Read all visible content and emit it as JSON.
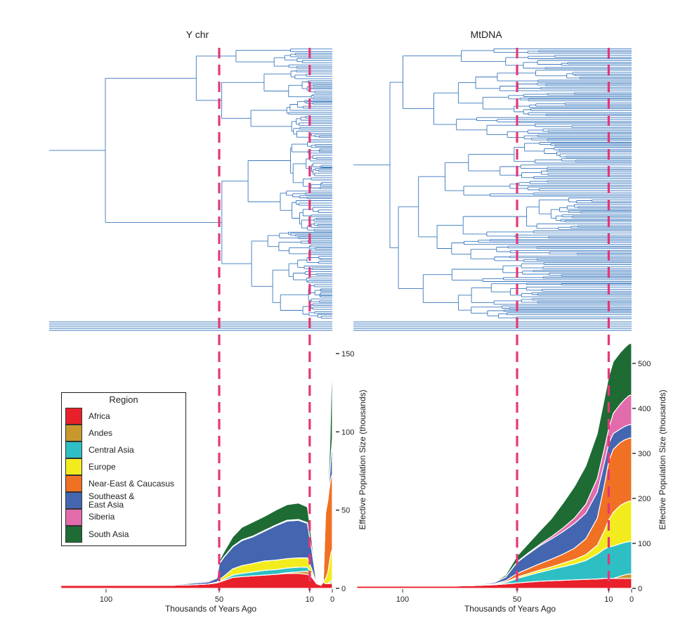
{
  "chart_data": [
    {
      "type": "tree",
      "title": "Y chr",
      "description_of_marks": "Time-calibrated Y-chromosome phylogeny with tips at present (0); dashed reference lines at 50 and 10 thousand years ago",
      "x_axis": "Thousands of Years Ago",
      "reference_lines": [
        50,
        10
      ]
    },
    {
      "type": "tree",
      "title": "MtDNA",
      "description_of_marks": "Time-calibrated mitochondrial DNA phylogeny with tips at present (0); dashed reference lines at 50 and 10 thousand years ago",
      "x_axis": "Thousands of Years Ago",
      "reference_lines": [
        50,
        10
      ]
    },
    {
      "type": "area",
      "stacked": true,
      "panel": "Y chr",
      "xlabel": "Thousands of Years Ago",
      "ylabel": "Effective Population Size (thousands)",
      "x_ticks": [
        100,
        50,
        10,
        0
      ],
      "y_ticks": [
        0,
        50,
        100,
        150
      ],
      "xlim": [
        120,
        0
      ],
      "ylim": [
        0,
        150
      ],
      "reference_lines": [
        50,
        10
      ],
      "x": [
        120,
        100,
        90,
        75,
        70,
        62,
        55,
        51,
        50,
        48,
        44,
        40,
        35,
        30,
        25,
        20,
        15,
        11,
        9,
        7,
        5,
        4,
        3,
        2,
        1.5,
        1,
        0.5,
        0
      ],
      "series": [
        {
          "name": "Africa",
          "values": [
            2,
            2,
            2,
            2,
            2,
            2.3,
            2.8,
            3.5,
            4,
            5,
            7,
            7.5,
            8,
            8.5,
            9,
            9.5,
            9.5,
            9,
            7,
            3,
            2,
            4,
            3,
            3,
            3,
            3,
            3,
            3
          ]
        },
        {
          "name": "Andes",
          "values": [
            0,
            0,
            0,
            0,
            0,
            0,
            0,
            0,
            0,
            0,
            0,
            0,
            0,
            0,
            0,
            0.5,
            1,
            2,
            1,
            0,
            0,
            0,
            0,
            0,
            0.5,
            1,
            1,
            1
          ]
        },
        {
          "name": "Central Asia",
          "values": [
            0,
            0,
            0,
            0,
            0,
            0,
            0,
            0.2,
            0.5,
            0.7,
            1.5,
            2,
            2.5,
            3,
            3,
            3,
            3,
            2.5,
            1,
            0,
            0,
            0,
            0,
            0,
            0,
            0.5,
            1,
            1
          ]
        },
        {
          "name": "Europe",
          "values": [
            0,
            0,
            0,
            0,
            0,
            0,
            0,
            0.3,
            1,
            2,
            4,
            5,
            5.5,
            6,
            6,
            6,
            6,
            6,
            3,
            0,
            0,
            0,
            3,
            7,
            11,
            15,
            18,
            20
          ]
        },
        {
          "name": "Near-East & Caucasus",
          "values": [
            0,
            0,
            0,
            0,
            0,
            0,
            0,
            0,
            0,
            0,
            0,
            0,
            0,
            0,
            0,
            0,
            0,
            0,
            0,
            0,
            0,
            0,
            42,
            46,
            48,
            48,
            48,
            48
          ]
        },
        {
          "name": "Southeast & East Asia",
          "values": [
            0,
            0,
            0,
            0,
            0.5,
            1,
            1.3,
            2.5,
            10,
            12,
            14,
            16,
            17,
            19,
            22,
            24,
            24,
            22,
            12,
            1,
            0,
            0,
            0,
            2,
            4,
            8,
            15,
            22
          ]
        },
        {
          "name": "Siberia",
          "values": [
            0,
            0,
            0,
            0,
            0,
            0.5,
            0.7,
            0.6,
            0.5,
            0.3,
            0.4,
            0.5,
            0.5,
            0.5,
            0.5,
            0.5,
            0.5,
            0.5,
            0.2,
            0,
            0,
            0,
            0,
            0,
            0.5,
            1,
            1,
            1
          ]
        },
        {
          "name": "South Asia",
          "values": [
            0,
            0,
            0,
            0,
            0,
            0,
            0,
            0.5,
            1.5,
            3,
            6,
            8,
            9,
            9,
            9.5,
            10,
            10.5,
            10,
            6,
            0,
            0,
            0,
            1,
            4,
            10,
            20,
            40,
            54
          ]
        }
      ]
    },
    {
      "type": "area",
      "stacked": true,
      "panel": "MtDNA",
      "xlabel": "Thousands of Years Ago",
      "ylabel": "Effective Population Size (thousands)",
      "x_ticks": [
        100,
        50,
        10,
        0
      ],
      "y_ticks": [
        0,
        100,
        200,
        300,
        400,
        500
      ],
      "xlim": [
        120,
        0
      ],
      "ylim": [
        0,
        530
      ],
      "reference_lines": [
        50,
        10
      ],
      "x": [
        120,
        100,
        80,
        70,
        60,
        55,
        50,
        45,
        40,
        35,
        30,
        25,
        20,
        15,
        12,
        10,
        8,
        5,
        3,
        1,
        0
      ],
      "series": [
        {
          "name": "Africa",
          "values": [
            5,
            5,
            5,
            6,
            8,
            10,
            12,
            14,
            16,
            17,
            18,
            19,
            20,
            21,
            22,
            22,
            22,
            22,
            22,
            22,
            22
          ]
        },
        {
          "name": "Andes",
          "values": [
            0,
            0,
            0,
            0,
            0,
            0,
            0,
            0,
            0,
            0,
            0,
            0,
            0,
            0,
            0,
            0,
            0,
            5,
            8,
            10,
            10
          ]
        },
        {
          "name": "Central Asia",
          "values": [
            0,
            0,
            0,
            0,
            1,
            3,
            10,
            15,
            20,
            25,
            30,
            35,
            42,
            55,
            65,
            70,
            72,
            72,
            72,
            72,
            72
          ]
        },
        {
          "name": "Europe",
          "values": [
            0,
            0,
            0,
            0,
            0,
            1,
            3,
            4,
            5,
            6,
            8,
            10,
            13,
            20,
            40,
            60,
            75,
            85,
            88,
            90,
            90
          ]
        },
        {
          "name": "Near-East & Caucasus",
          "values": [
            0,
            0,
            0,
            0,
            1,
            3,
            8,
            11,
            14,
            17,
            20,
            25,
            35,
            60,
            100,
            130,
            140,
            140,
            140,
            140,
            140
          ]
        },
        {
          "name": "Southeast & East Asia",
          "values": [
            0,
            0,
            0,
            1,
            3,
            8,
            25,
            33,
            40,
            45,
            50,
            55,
            57,
            58,
            50,
            40,
            35,
            30,
            30,
            30,
            30
          ]
        },
        {
          "name": "Siberia",
          "values": [
            0,
            0,
            0,
            0,
            0,
            0.5,
            1,
            2,
            3,
            5,
            8,
            12,
            20,
            30,
            32,
            33,
            45,
            55,
            60,
            65,
            65
          ]
        },
        {
          "name": "South Asia",
          "values": [
            0,
            0,
            0,
            0,
            1,
            4,
            13,
            21,
            30,
            40,
            55,
            70,
            85,
            100,
            110,
            115,
            115,
            115,
            115,
            115,
            115
          ]
        }
      ]
    }
  ],
  "labels": {
    "y_title": "Y chr",
    "mt_title": "MtDNA",
    "xlabel": "Thousands of Years Ago",
    "ylabel": "Effective Population Size (thousands)"
  },
  "legend": {
    "title": "Region",
    "items": [
      {
        "label": "Africa",
        "color": "#E8202A"
      },
      {
        "label": "Andes",
        "color": "#C8982E"
      },
      {
        "label": "Central Asia",
        "color": "#2EBFC4"
      },
      {
        "label": "Europe",
        "color": "#F2EC1E"
      },
      {
        "label": "Near-East & Caucasus",
        "color": "#F07024"
      },
      {
        "label": "Southeast &\nEast Asia",
        "color": "#4466B0"
      },
      {
        "label": "Siberia",
        "color": "#E26BAC"
      },
      {
        "label": "South Asia",
        "color": "#1E6B34"
      }
    ]
  },
  "colors": {
    "tree": "#3A78BE",
    "dashed_line": "#E53777",
    "axis": "#333333"
  }
}
